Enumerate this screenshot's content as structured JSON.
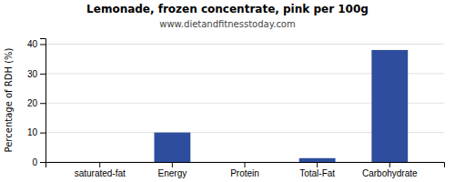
{
  "chart_data": {
    "type": "bar",
    "title": "Lemonade, frozen concentrate, pink per 100g",
    "subtitle": "www.dietandfitnesstoday.com",
    "categories": [
      "saturated-fat",
      "Energy",
      "Protein",
      "Total-Fat",
      "Carbohydrate"
    ],
    "values": [
      0,
      10,
      0,
      1.3,
      38
    ],
    "color": "#2e4d9e",
    "ylabel": "Percentage of RDH (%)",
    "ylim": [
      0,
      42
    ],
    "yticks": [
      0,
      10,
      20,
      30,
      40
    ],
    "grid": true
  }
}
